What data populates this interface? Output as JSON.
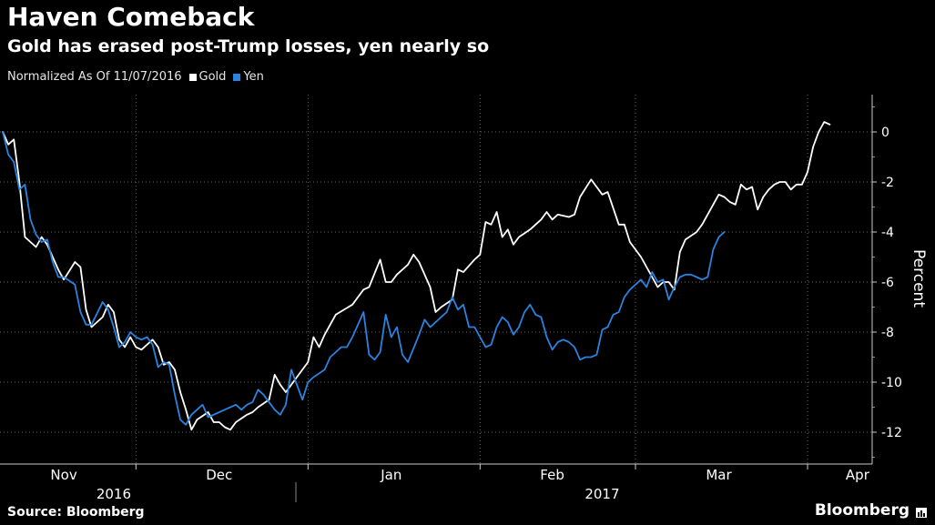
{
  "title": "Haven Comeback",
  "subtitle": "Gold has erased post-Trump losses, yen nearly so",
  "legend": {
    "prefix": "Normalized As Of 11/07/2016",
    "items": [
      {
        "label": "Gold",
        "color": "#ffffff"
      },
      {
        "label": "Yen",
        "color": "#2b83e0"
      }
    ]
  },
  "source": "Source: Bloomberg",
  "brand": "Bloomberg",
  "colors": {
    "background": "#000000",
    "gold": "#ffffff",
    "yen": "#2b83e0",
    "grid": "#666666",
    "text": "#ffffff"
  },
  "chart_data": {
    "type": "line",
    "ylabel": "Percent",
    "ylim": [
      -13,
      1.5
    ],
    "yticks": [
      0,
      -2,
      -4,
      -6,
      -8,
      -10,
      -12
    ],
    "grid": true,
    "x_domain": [
      "2016-11-07",
      "2017-04-11"
    ],
    "month_labels": [
      {
        "label": "Nov",
        "date": "2016-11-18"
      },
      {
        "label": "Dec",
        "date": "2016-12-16"
      },
      {
        "label": "Jan",
        "date": "2017-01-16"
      },
      {
        "label": "Feb",
        "date": "2017-02-14"
      },
      {
        "label": "Mar",
        "date": "2017-03-16"
      },
      {
        "label": "Apr",
        "date": "2017-04-10"
      }
    ],
    "year_labels": [
      {
        "label": "2016",
        "date": "2016-11-27"
      },
      {
        "label": "2017",
        "date": "2017-02-23"
      }
    ],
    "series": [
      {
        "name": "Gold",
        "color": "#ffffff",
        "points": [
          [
            "2016-11-07",
            0
          ],
          [
            "2016-11-08",
            -0.5
          ],
          [
            "2016-11-09",
            -0.3
          ],
          [
            "2016-11-10",
            -2.0
          ],
          [
            "2016-11-11",
            -4.2
          ],
          [
            "2016-11-13",
            -4.6
          ],
          [
            "2016-11-14",
            -4.2
          ],
          [
            "2016-11-15",
            -4.5
          ],
          [
            "2016-11-17",
            -5.5
          ],
          [
            "2016-11-18",
            -5.9
          ],
          [
            "2016-11-20",
            -5.2
          ],
          [
            "2016-11-21",
            -5.4
          ],
          [
            "2016-11-22",
            -7.1
          ],
          [
            "2016-11-23",
            -7.8
          ],
          [
            "2016-11-24",
            -7.6
          ],
          [
            "2016-11-25",
            -7.4
          ],
          [
            "2016-11-26",
            -6.9
          ],
          [
            "2016-11-27",
            -7.2
          ],
          [
            "2016-11-28",
            -8.3
          ],
          [
            "2016-11-29",
            -8.6
          ],
          [
            "2016-11-30",
            -8.2
          ],
          [
            "2016-12-01",
            -8.6
          ],
          [
            "2016-12-02",
            -8.7
          ],
          [
            "2016-12-04",
            -8.3
          ],
          [
            "2016-12-05",
            -8.6
          ],
          [
            "2016-12-06",
            -9.3
          ],
          [
            "2016-12-07",
            -9.2
          ],
          [
            "2016-12-08",
            -9.5
          ],
          [
            "2016-12-09",
            -10.4
          ],
          [
            "2016-12-10",
            -11.1
          ],
          [
            "2016-12-11",
            -11.9
          ],
          [
            "2016-12-12",
            -11.5
          ],
          [
            "2016-12-14",
            -11.2
          ],
          [
            "2016-12-15",
            -11.6
          ],
          [
            "2016-12-16",
            -11.6
          ],
          [
            "2016-12-17",
            -11.8
          ],
          [
            "2016-12-18",
            -11.9
          ],
          [
            "2016-12-19",
            -11.6
          ],
          [
            "2016-12-21",
            -11.3
          ],
          [
            "2016-12-22",
            -11.2
          ],
          [
            "2016-12-23",
            -11.0
          ],
          [
            "2016-12-25",
            -10.7
          ],
          [
            "2016-12-26",
            -9.7
          ],
          [
            "2016-12-27",
            -10.1
          ],
          [
            "2016-12-28",
            -10.4
          ],
          [
            "2016-12-29",
            -10.1
          ],
          [
            "2016-12-30",
            -9.8
          ],
          [
            "2017-01-01",
            -9.2
          ],
          [
            "2017-01-02",
            -8.2
          ],
          [
            "2017-01-03",
            -8.6
          ],
          [
            "2017-01-04",
            -8.1
          ],
          [
            "2017-01-06",
            -7.3
          ],
          [
            "2017-01-09",
            -6.9
          ],
          [
            "2017-01-10",
            -6.6
          ],
          [
            "2017-01-11",
            -6.3
          ],
          [
            "2017-01-12",
            -6.2
          ],
          [
            "2017-01-14",
            -5.1
          ],
          [
            "2017-01-15",
            -6.0
          ],
          [
            "2017-01-16",
            -6.0
          ],
          [
            "2017-01-17",
            -5.7
          ],
          [
            "2017-01-18",
            -5.5
          ],
          [
            "2017-01-19",
            -5.3
          ],
          [
            "2017-01-20",
            -4.9
          ],
          [
            "2017-01-21",
            -5.2
          ],
          [
            "2017-01-23",
            -6.2
          ],
          [
            "2017-01-24",
            -7.2
          ],
          [
            "2017-01-25",
            -7.0
          ],
          [
            "2017-01-27",
            -6.7
          ],
          [
            "2017-01-28",
            -5.5
          ],
          [
            "2017-01-29",
            -5.6
          ],
          [
            "2017-01-31",
            -5.1
          ],
          [
            "2017-02-01",
            -4.9
          ],
          [
            "2017-02-02",
            -3.6
          ],
          [
            "2017-02-03",
            -3.7
          ],
          [
            "2017-02-04",
            -3.2
          ],
          [
            "2017-02-05",
            -4.2
          ],
          [
            "2017-02-06",
            -3.9
          ],
          [
            "2017-02-07",
            -4.5
          ],
          [
            "2017-02-08",
            -4.2
          ],
          [
            "2017-02-10",
            -3.9
          ],
          [
            "2017-02-12",
            -3.5
          ],
          [
            "2017-02-13",
            -3.2
          ],
          [
            "2017-02-14",
            -3.5
          ],
          [
            "2017-02-15",
            -3.3
          ],
          [
            "2017-02-17",
            -3.4
          ],
          [
            "2017-02-18",
            -3.3
          ],
          [
            "2017-02-19",
            -2.6
          ],
          [
            "2017-02-21",
            -1.9
          ],
          [
            "2017-02-22",
            -2.2
          ],
          [
            "2017-02-23",
            -2.5
          ],
          [
            "2017-02-24",
            -2.4
          ],
          [
            "2017-02-26",
            -3.7
          ],
          [
            "2017-02-27",
            -3.7
          ],
          [
            "2017-02-28",
            -4.4
          ],
          [
            "2017-03-02",
            -5.0
          ],
          [
            "2017-03-04",
            -5.8
          ],
          [
            "2017-03-05",
            -6.2
          ],
          [
            "2017-03-06",
            -6.0
          ],
          [
            "2017-03-07",
            -6.0
          ],
          [
            "2017-03-08",
            -6.3
          ],
          [
            "2017-03-09",
            -4.8
          ],
          [
            "2017-03-10",
            -4.3
          ],
          [
            "2017-03-12",
            -4.0
          ],
          [
            "2017-03-13",
            -3.7
          ],
          [
            "2017-03-15",
            -2.9
          ],
          [
            "2017-03-16",
            -2.5
          ],
          [
            "2017-03-17",
            -2.6
          ],
          [
            "2017-03-18",
            -2.8
          ],
          [
            "2017-03-19",
            -2.9
          ],
          [
            "2017-03-20",
            -2.1
          ],
          [
            "2017-03-21",
            -2.3
          ],
          [
            "2017-03-22",
            -2.2
          ],
          [
            "2017-03-23",
            -3.1
          ],
          [
            "2017-03-24",
            -2.6
          ],
          [
            "2017-03-25",
            -2.3
          ],
          [
            "2017-03-26",
            -2.1
          ],
          [
            "2017-03-27",
            -2.0
          ],
          [
            "2017-03-28",
            -2.0
          ],
          [
            "2017-03-29",
            -2.3
          ],
          [
            "2017-03-30",
            -2.1
          ],
          [
            "2017-03-31",
            -2.1
          ],
          [
            "2017-04-01",
            -1.6
          ],
          [
            "2017-04-02",
            -0.6
          ],
          [
            "2017-04-03",
            0.0
          ],
          [
            "2017-04-04",
            0.4
          ],
          [
            "2017-04-05",
            0.3
          ]
        ]
      },
      {
        "name": "Yen",
        "color": "#2b83e0",
        "points": [
          [
            "2016-11-07",
            0
          ],
          [
            "2016-11-08",
            -0.9
          ],
          [
            "2016-11-09",
            -1.2
          ],
          [
            "2016-11-10",
            -2.3
          ],
          [
            "2016-11-11",
            -2.1
          ],
          [
            "2016-11-12",
            -3.5
          ],
          [
            "2016-11-13",
            -4.1
          ],
          [
            "2016-11-14",
            -4.4
          ],
          [
            "2016-11-15",
            -4.3
          ],
          [
            "2016-11-16",
            -5.2
          ],
          [
            "2016-11-17",
            -5.8
          ],
          [
            "2016-11-18",
            -5.8
          ],
          [
            "2016-11-20",
            -6.1
          ],
          [
            "2016-11-21",
            -7.2
          ],
          [
            "2016-11-22",
            -7.7
          ],
          [
            "2016-11-23",
            -7.7
          ],
          [
            "2016-11-25",
            -6.8
          ],
          [
            "2016-11-26",
            -7.1
          ],
          [
            "2016-11-27",
            -7.8
          ],
          [
            "2016-11-28",
            -8.6
          ],
          [
            "2016-11-29",
            -8.4
          ],
          [
            "2016-11-30",
            -8.0
          ],
          [
            "2016-12-01",
            -8.2
          ],
          [
            "2016-12-02",
            -8.3
          ],
          [
            "2016-12-03",
            -8.2
          ],
          [
            "2016-12-04",
            -8.5
          ],
          [
            "2016-12-05",
            -9.4
          ],
          [
            "2016-12-06",
            -9.2
          ],
          [
            "2016-12-07",
            -9.3
          ],
          [
            "2016-12-08",
            -10.5
          ],
          [
            "2016-12-09",
            -11.5
          ],
          [
            "2016-12-10",
            -11.7
          ],
          [
            "2016-12-11",
            -11.3
          ],
          [
            "2016-12-12",
            -11.1
          ],
          [
            "2016-12-13",
            -10.9
          ],
          [
            "2016-12-14",
            -11.4
          ],
          [
            "2016-12-16",
            -11.2
          ],
          [
            "2016-12-17",
            -11.1
          ],
          [
            "2016-12-19",
            -10.9
          ],
          [
            "2016-12-20",
            -11.1
          ],
          [
            "2016-12-21",
            -10.9
          ],
          [
            "2016-12-22",
            -10.8
          ],
          [
            "2016-12-23",
            -10.3
          ],
          [
            "2016-12-24",
            -10.5
          ],
          [
            "2016-12-26",
            -11.1
          ],
          [
            "2016-12-27",
            -11.3
          ],
          [
            "2016-12-28",
            -10.9
          ],
          [
            "2016-12-29",
            -9.5
          ],
          [
            "2016-12-31",
            -10.7
          ],
          [
            "2017-01-01",
            -10.0
          ],
          [
            "2017-01-02",
            -9.8
          ],
          [
            "2017-01-04",
            -9.5
          ],
          [
            "2017-01-05",
            -9.0
          ],
          [
            "2017-01-06",
            -8.8
          ],
          [
            "2017-01-07",
            -8.6
          ],
          [
            "2017-01-08",
            -8.6
          ],
          [
            "2017-01-09",
            -8.2
          ],
          [
            "2017-01-11",
            -7.2
          ],
          [
            "2017-01-12",
            -8.9
          ],
          [
            "2017-01-13",
            -9.1
          ],
          [
            "2017-01-14",
            -8.8
          ],
          [
            "2017-01-15",
            -7.3
          ],
          [
            "2017-01-16",
            -8.2
          ],
          [
            "2017-01-17",
            -7.8
          ],
          [
            "2017-01-18",
            -8.9
          ],
          [
            "2017-01-19",
            -9.2
          ],
          [
            "2017-01-21",
            -8.1
          ],
          [
            "2017-01-22",
            -7.5
          ],
          [
            "2017-01-23",
            -7.8
          ],
          [
            "2017-01-25",
            -7.4
          ],
          [
            "2017-01-26",
            -7.2
          ],
          [
            "2017-01-27",
            -6.6
          ],
          [
            "2017-01-28",
            -7.1
          ],
          [
            "2017-01-29",
            -6.9
          ],
          [
            "2017-01-30",
            -7.8
          ],
          [
            "2017-01-31",
            -7.8
          ],
          [
            "2017-02-01",
            -8.2
          ],
          [
            "2017-02-02",
            -8.6
          ],
          [
            "2017-02-03",
            -8.5
          ],
          [
            "2017-02-04",
            -7.8
          ],
          [
            "2017-02-05",
            -7.4
          ],
          [
            "2017-02-06",
            -7.6
          ],
          [
            "2017-02-07",
            -8.1
          ],
          [
            "2017-02-08",
            -7.8
          ],
          [
            "2017-02-09",
            -7.2
          ],
          [
            "2017-02-10",
            -6.9
          ],
          [
            "2017-02-11",
            -7.3
          ],
          [
            "2017-02-12",
            -7.4
          ],
          [
            "2017-02-13",
            -8.2
          ],
          [
            "2017-02-14",
            -8.7
          ],
          [
            "2017-02-15",
            -8.4
          ],
          [
            "2017-02-16",
            -8.3
          ],
          [
            "2017-02-17",
            -8.4
          ],
          [
            "2017-02-18",
            -8.6
          ],
          [
            "2017-02-19",
            -9.1
          ],
          [
            "2017-02-20",
            -9.0
          ],
          [
            "2017-02-21",
            -9.0
          ],
          [
            "2017-02-22",
            -8.9
          ],
          [
            "2017-02-23",
            -7.9
          ],
          [
            "2017-02-24",
            -7.8
          ],
          [
            "2017-02-25",
            -7.3
          ],
          [
            "2017-02-26",
            -7.2
          ],
          [
            "2017-02-27",
            -6.6
          ],
          [
            "2017-02-28",
            -6.3
          ],
          [
            "2017-03-01",
            -6.1
          ],
          [
            "2017-03-02",
            -5.9
          ],
          [
            "2017-03-03",
            -6.2
          ],
          [
            "2017-03-04",
            -5.6
          ],
          [
            "2017-03-05",
            -6.0
          ],
          [
            "2017-03-06",
            -5.9
          ],
          [
            "2017-03-07",
            -6.7
          ],
          [
            "2017-03-08",
            -6.2
          ],
          [
            "2017-03-09",
            -5.8
          ],
          [
            "2017-03-10",
            -5.7
          ],
          [
            "2017-03-11",
            -5.7
          ],
          [
            "2017-03-12",
            -5.8
          ],
          [
            "2017-03-13",
            -5.9
          ],
          [
            "2017-03-14",
            -5.8
          ],
          [
            "2017-03-15",
            -4.7
          ],
          [
            "2017-03-16",
            -4.2
          ],
          [
            "2017-03-17",
            -4.0
          ]
        ]
      }
    ]
  }
}
